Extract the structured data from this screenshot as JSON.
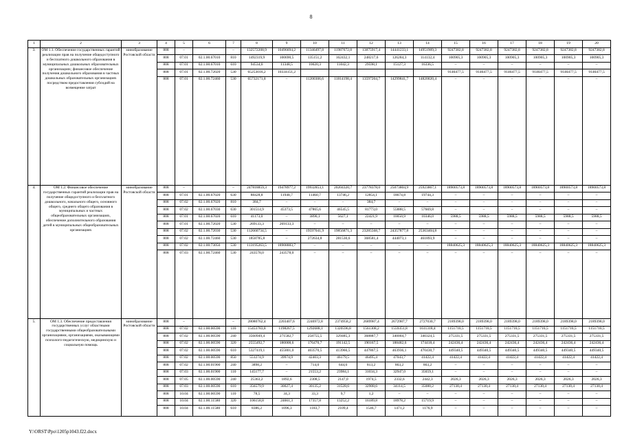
{
  "page": {
    "number": "8",
    "footer_path": "Y:\\ORST\\Ppo\\1205p1043.f22.docx"
  },
  "table": {
    "column_numbers": [
      "1",
      "2",
      "3",
      "4",
      "5",
      "6",
      "7",
      "8",
      "9",
      "10",
      "11",
      "12",
      "13",
      "14",
      "15",
      "16",
      "17",
      "18",
      "19",
      "20"
    ],
    "rows": [
      {
        "num": "3.",
        "name": "ОМ 1.1. Обеспечение государственных гарантий реализации прав на получение общедоступного и бесплатного дошкольного образования в муниципальных дошкольных образовательных организациях; финансовое обеспечение получения дошкольного образования в частных дошкольных образовательных организациях посредством предоставления субсидий на возмещение затрат",
        "executor": "минобразование Ростовской области",
        "lines": [
          {
            "grbs": "808",
            "rzpr": "–",
            "csr": "",
            "vr": "–",
            "values": [
              "132572208,9",
              "10496694,2",
              "11346497,8",
              "11987672,8",
              "13875917,4",
              "14441233,1",
              "14951909,3",
              "9247382,8",
              "9247382,8",
              "9247382,8",
              "9247382,8",
              "9247382,8",
              "9247382,8"
            ]
          },
          {
            "grbs": "808",
            "rzpr": "07.01",
            "csr": "02.1.00.67010",
            "vr": "810",
            "values": [
              "1492319,9",
              "100690,5",
              "135151,2",
              "162432,1",
              "248217,6",
              "126284,3",
              "114132,4",
              "100905,3",
              "100905,3",
              "100905,3",
              "100905,3",
              "100905,3",
              "100905,3"
            ]
          },
          {
            "grbs": "808",
            "rzpr": "07.01",
            "csr": "02.1.00.67010",
            "vr": "610",
            "values": [
              "94534,0",
              "11348,5",
              "10620,3",
              "11042,3",
              "29598,1",
              "15127,3",
              "16336,5",
              "–",
              "–",
              "–",
              "–",
              "–",
              "–"
            ]
          },
          {
            "grbs": "808",
            "rzpr": "07.01",
            "csr": "02.1.00.72020",
            "vr": "530",
            "values": [
              "65253016,2",
              "10334151,2",
              "",
              "",
              "",
              "",
              "",
              "9146477,5",
              "9146477,5",
              "9146477,5",
              "9146477,5",
              "9146477,5",
              "9146477,5"
            ]
          },
          {
            "grbs": "808",
            "rzpr": "07.01",
            "csr": "02.1.00.72460",
            "vr": "530",
            "values": [
              "65732171,8",
              "–",
              "11200306,6",
              "11814198,4",
              "13597204,7",
              "14299841,7",
              "14820020,4",
              "–",
              "–",
              "–",
              "–",
              "–",
              "–"
            ]
          }
        ]
      },
      {
        "num": "4.",
        "name": "ОМ 1.2. Финансовое обеспечение государственных гарантий реализации прав на получение общедоступного и бесплатного дошкольного, начального общего, основного общего, среднего общего образования в муниципальных и частных общеобразовательных организациях, обеспечение дополнительного образования детей в муниципальных общеобразовательных организациях",
        "executor": "минобразование Ростовской области",
        "lines": [
          {
            "grbs": "808",
            "rzpr": "–",
            "csr": "",
            "vr": "–",
            "values": [
              "247818859,3",
              "19478977,2",
              "19932853,1",
              "20204320,7",
              "23778378,0",
              "25073804,9",
              "25923867,1",
              "18900573,8",
              "18900573,8",
              "18900573,8",
              "18900573,8",
              "18900573,8",
              "18900573,8"
            ]
          },
          {
            "grbs": "808",
            "rzpr": "07.01",
            "csr": "02.1.00.67020",
            "vr": "630",
            "values": [
              "88428,8",
              "11948,7",
              "11460,7",
              "13746,2",
              "12854,1",
              "18674,8",
              "19744,3",
              "–",
              "–",
              "–",
              "–",
              "–",
              "–"
            ]
          },
          {
            "grbs": "808",
            "rzpr": "07.02",
            "csr": "02.1.00.67020",
            "vr": "810",
            "values": [
              "384,7",
              "–",
              "–",
              "–",
              "384,7",
              "–",
              "–",
              "–",
              "–",
              "–",
              "–",
              "–",
              "–"
            ]
          },
          {
            "grbs": "808",
            "rzpr": "07.02",
            "csr": "02.1.00.67030",
            "vr": "630",
            "values": [
              "301514,9",
              "45373,5",
              "47865,6",
              "46545,5",
              "81773,0",
              "55888,5",
              "57669,8",
              "–",
              "–",
              "–",
              "–",
              "–",
              "–"
            ]
          },
          {
            "grbs": "808",
            "rzpr": "07.01",
            "csr": "02.1.00.67020",
            "vr": "610",
            "values": [
              "41173,0",
              "–",
              "3890,1",
              "5627,1",
              "22421,9",
              "10050,9",
              "10346,0",
              "5988,5",
              "5988,5",
              "5988,5",
              "5988,5",
              "5988,5",
              "5988,5"
            ]
          },
          {
            "grbs": "808",
            "rzpr": "07.01",
            "csr": "02.1.00.72020",
            "vr": "530",
            "values": [
              "269133,3",
              "269133,3",
              "–",
              "–",
              "–",
              "–",
              "–",
              "–",
              "–",
              "–",
              "–",
              "–",
              "–"
            ]
          },
          {
            "grbs": "808",
            "rzpr": "07.02",
            "csr": "02.1.00.72030",
            "vr": "530",
            "values": [
              "112660734,5",
              "–",
              "19597041,9",
              "19856871,3",
              "23285568,7",
              "24357877,8",
              "25363404,8",
              "–",
              "–",
              "–",
              "–",
              "–",
              "–"
            ]
          },
          {
            "grbs": "808",
            "rzpr": "07.02",
            "csr": "02.1.00.72460",
            "vr": "530",
            "values": [
              "1858785,8",
              "–",
              "272634,8",
              "281530,6",
              "368581,4",
              "444073,1",
              "461893,9",
              "–",
              "–",
              "–",
              "–",
              "–",
              "–"
            ]
          },
          {
            "grbs": "808",
            "rzpr": "07.02",
            "csr": "02.1.00.73050",
            "vr": "530",
            "values": [
              "113195263,5",
              "18908883,7",
              "–",
              "–",
              "–",
              "–",
              "–",
              "18840625,3",
              "18840625,3",
              "18840625,3",
              "18840625,3",
              "18840625,3",
              "18840625,3"
            ]
          },
          {
            "grbs": "808",
            "rzpr": "07.03",
            "csr": "02.1.00.72460",
            "vr": "530",
            "values": [
              "243578,0",
              "243578,0",
              "–",
              "–",
              "–",
              "–",
              "–",
              "–",
              "–",
              "–",
              "–",
              "–",
              "–"
            ]
          }
        ]
      },
      {
        "num": "5.",
        "name": "ОМ 1.3. Обеспечение предоставления государственных услуг областными государственными общеобразовательными организациями, организациями, оказывающими психолого-педагогическую, медицинскую и социальную помощь",
        "executor": "минобразование Ростовской области",
        "lines": [
          {
            "grbs": "808",
            "rzpr": "–",
            "csr": "",
            "vr": "–",
            "values": [
              "28080762,4",
              "2203407,6",
              "2246972,8",
              "2374958,2",
              "2689987,4",
              "2672987,7",
              "2727030,7",
              "2189398,0",
              "2189398,0",
              "2189398,0",
              "2189398,0",
              "2189398,0",
              "2189398,0"
            ]
          },
          {
            "grbs": "808",
            "rzpr": "07.02",
            "csr": "02.1.00.00590",
            "vr": "110",
            "values": [
              "15453783,8",
              "1198267,5",
              "1292688,1",
              "1320596,8",
              "1561308,2",
              "1559351,8",
              "1611318,4",
              "1151710,5",
              "1151710,5",
              "1151710,5",
              "1151710,5",
              "1151710,5",
              "1151710,5"
            ]
          },
          {
            "grbs": "808",
            "rzpr": "07.02",
            "csr": "02.1.00.00590",
            "vr": "240",
            "values": [
              "3560949,4",
              "271582,7",
              "258755,5",
              "329485,3",
              "368887,7",
              "340004,7",
              "340324,5",
              "275331,5",
              "275331,5",
              "275331,5",
              "275331,5",
              "275331,5",
              "275331,5"
            ]
          },
          {
            "grbs": "808",
            "rzpr": "07.02",
            "csr": "02.1.00.00590",
            "vr": "320",
            "values": [
              "2555492,7",
              "180008,6",
              "176470,7",
              "191142,5",
              "190167,5",
              "188482,6",
              "174418,4",
              "242436,4",
              "242436,4",
              "242436,4",
              "242436,4",
              "242436,4",
              "242436,4"
            ]
          },
          {
            "grbs": "808",
            "rzpr": "07.02",
            "csr": "02.1.00.00590",
            "vr": "610",
            "values": [
              "5327419,1",
              "455801,0",
              "403570,5",
              "413966,5",
              "447867,5",
              "463936,1",
              "470430,7",
              "449340,5",
              "449340,5",
              "449340,5",
              "449340,5",
              "449340,5",
              "449340,5"
            ]
          },
          {
            "grbs": "808",
            "rzpr": "07.02",
            "csr": "02.1.00.00590",
            "vr": "850",
            "values": [
              "551274,9",
              "39974,9",
              "42403,3",
              "46179,5",
              "46495,4",
              "47043,7",
              "41422,4",
              "41422,4",
              "41422,4",
              "41422,4",
              "41422,4",
              "41422,4",
              "41422,4"
            ]
          },
          {
            "grbs": "808",
            "rzpr": "07.02",
            "csr": "02.1.00.01900",
            "vr": "240",
            "values": [
              "3898,2",
              "–",
              "714,0",
              "644,6",
              "813,2",
              "863,2",
              "863,2",
              "–",
              "–",
              "–",
              "–",
              "–",
              "–"
            ]
          },
          {
            "grbs": "808",
            "rzpr": "07.03",
            "csr": "02.1.00.01900",
            "vr": "110",
            "values": [
              "145177,7",
              "–",
              "21553,2",
              "23984,1",
              "31034,3",
              "32947,0",
              "35659,1",
              "–",
              "–",
              "–",
              "–",
              "–",
              "–"
            ]
          },
          {
            "grbs": "808",
            "rzpr": "07.05",
            "csr": "02.1.00.00590",
            "vr": "240",
            "values": [
              "25363,2",
              "1892,6",
              "2308,5",
              "2147,0",
              "1974,5",
              "2332,6",
              "2442,3",
              "2026,3",
              "2026,3",
              "2026,3",
              "2026,3",
              "2026,3",
              "2026,3"
            ]
          },
          {
            "grbs": "808",
            "rzpr": "07.03",
            "csr": "02.1.00.00590",
            "vr": "610",
            "values": [
              "356579,9",
              "30027,4",
              "30135,2",
              "31528,6",
              "32908,6",
              "34114,5",
              "35080,2",
              "27130,4",
              "27130,4",
              "27130,4",
              "27130,4",
              "27130,4",
              "27130,4"
            ]
          },
          {
            "grbs": "808",
            "rzpr": "10.04",
            "csr": "02.1.00.00590",
            "vr": "110",
            "values": [
              "78,5",
              "34,3",
              "33,3",
              "9,7",
              "1,2",
              "–",
              "–",
              "–",
              "–",
              "–",
              "–",
              "–",
              "–"
            ]
          },
          {
            "grbs": "808",
            "rzpr": "10.04",
            "csr": "02.1.00.11580",
            "vr": "320",
            "values": [
              "106158,8",
              "24661,3",
              "17357,8",
              "13252,2",
              "16189,8",
              "18978,2",
              "15719,9",
              "–",
              "–",
              "–",
              "–",
              "–",
              "–"
            ]
          },
          {
            "grbs": "808",
            "rzpr": "10.04",
            "csr": "02.1.00.11580",
            "vr": "610",
            "values": [
              "8386,2",
              "1096,3",
              "1183,7",
              "2109,4",
              "1546,7",
              "1471,2",
              "1176,9",
              "–",
              "–",
              "–",
              "–",
              "–",
              "–"
            ]
          }
        ]
      }
    ]
  }
}
